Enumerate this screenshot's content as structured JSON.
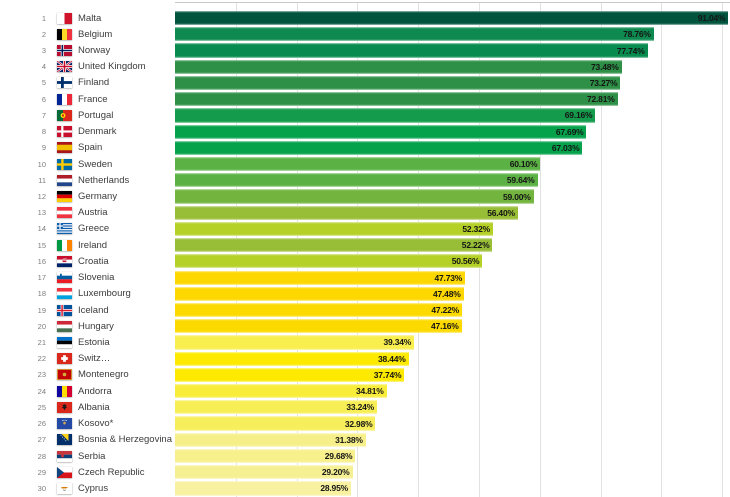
{
  "chart_data": {
    "type": "bar",
    "orientation": "horizontal",
    "value_format": "percent",
    "xlim": [
      0,
      91.3
    ],
    "gridline_interval": 10,
    "grid_color": "#e2e2e2",
    "legend": "none",
    "rows": [
      {
        "rank": "1",
        "country": "Malta",
        "value": 91.04,
        "label": "91.04%",
        "color": "#00543E",
        "flag": "malta"
      },
      {
        "rank": "2",
        "country": "Belgium",
        "value": 78.76,
        "label": "78.76%",
        "color": "#0E8A50",
        "flag": "belgium"
      },
      {
        "rank": "3",
        "country": "Norway",
        "value": 77.74,
        "label": "77.74%",
        "color": "#078B4E",
        "flag": "norway"
      },
      {
        "rank": "4",
        "country": "United Kingdom",
        "value": 73.48,
        "label": "73.48%",
        "color": "#2D9046",
        "flag": "uk"
      },
      {
        "rank": "5",
        "country": "Finland",
        "value": 73.27,
        "label": "73.27%",
        "color": "#2D9046",
        "flag": "finland"
      },
      {
        "rank": "6",
        "country": "France",
        "value": 72.81,
        "label": "72.81%",
        "color": "#2D9046",
        "flag": "france"
      },
      {
        "rank": "7",
        "country": "Portugal",
        "value": 69.16,
        "label": "69.16%",
        "color": "#149B4B",
        "flag": "portugal"
      },
      {
        "rank": "8",
        "country": "Denmark",
        "value": 67.69,
        "label": "67.69%",
        "color": "#05A24B",
        "flag": "denmark"
      },
      {
        "rank": "9",
        "country": "Spain",
        "value": 67.03,
        "label": "67.03%",
        "color": "#05A24B",
        "flag": "spain"
      },
      {
        "rank": "10",
        "country": "Sweden",
        "value": 60.1,
        "label": "60.10%",
        "color": "#5BB144",
        "flag": "sweden"
      },
      {
        "rank": "11",
        "country": "Netherlands",
        "value": 59.64,
        "label": "59.64%",
        "color": "#5BB144",
        "flag": "netherlands"
      },
      {
        "rank": "12",
        "country": "Germany",
        "value": 59.0,
        "label": "59.00%",
        "color": "#72B43E",
        "flag": "germany"
      },
      {
        "rank": "13",
        "country": "Austria",
        "value": 56.4,
        "label": "56.40%",
        "color": "#98BE37",
        "flag": "austria"
      },
      {
        "rank": "14",
        "country": "Greece",
        "value": 52.32,
        "label": "52.32%",
        "color": "#B5D026",
        "flag": "greece"
      },
      {
        "rank": "15",
        "country": "Ireland",
        "value": 52.22,
        "label": "52.22%",
        "color": "#98BE37",
        "flag": "ireland"
      },
      {
        "rank": "16",
        "country": "Croatia",
        "value": 50.56,
        "label": "50.56%",
        "color": "#B5D026",
        "flag": "croatia"
      },
      {
        "rank": "17",
        "country": "Slovenia",
        "value": 47.73,
        "label": "47.73%",
        "color": "#FCD800",
        "flag": "slovenia"
      },
      {
        "rank": "18",
        "country": "Luxembourg",
        "value": 47.48,
        "label": "47.48%",
        "color": "#FCD800",
        "flag": "luxembourg"
      },
      {
        "rank": "19",
        "country": "Iceland",
        "value": 47.22,
        "label": "47.22%",
        "color": "#FCDA00",
        "flag": "iceland"
      },
      {
        "rank": "20",
        "country": "Hungary",
        "value": 47.16,
        "label": "47.16%",
        "color": "#FCDA00",
        "flag": "hungary"
      },
      {
        "rank": "21",
        "country": "Estonia",
        "value": 39.34,
        "label": "39.34%",
        "color": "#F8EE4E",
        "flag": "estonia"
      },
      {
        "rank": "22",
        "country": "Switz…",
        "value": 38.44,
        "label": "38.44%",
        "color": "#FDEA00",
        "flag": "switzerland"
      },
      {
        "rank": "23",
        "country": "Montenegro",
        "value": 37.74,
        "label": "37.74%",
        "color": "#FDEA00",
        "flag": "montenegro"
      },
      {
        "rank": "24",
        "country": "Andorra",
        "value": 34.81,
        "label": "34.81%",
        "color": "#F9ED3B",
        "flag": "andorra"
      },
      {
        "rank": "25",
        "country": "Albania",
        "value": 33.24,
        "label": "33.24%",
        "color": "#F7EE55",
        "flag": "albania"
      },
      {
        "rank": "26",
        "country": "Kosovo*",
        "value": 32.98,
        "label": "32.98%",
        "color": "#F7EE5C",
        "flag": "kosovo"
      },
      {
        "rank": "27",
        "country": "Bosnia & Herzegovina",
        "value": 31.38,
        "label": "31.38%",
        "color": "#F7F08A",
        "flag": "bosnia"
      },
      {
        "rank": "28",
        "country": "Serbia",
        "value": 29.68,
        "label": "29.68%",
        "color": "#F7F08D",
        "flag": "serbia"
      },
      {
        "rank": "29",
        "country": "Czech Republic",
        "value": 29.2,
        "label": "29.20%",
        "color": "#F6F095",
        "flag": "czech"
      },
      {
        "rank": "30",
        "country": "Cyprus",
        "value": 28.95,
        "label": "28.95%",
        "color": "#F7F1A0",
        "flag": "cyprus"
      }
    ]
  }
}
